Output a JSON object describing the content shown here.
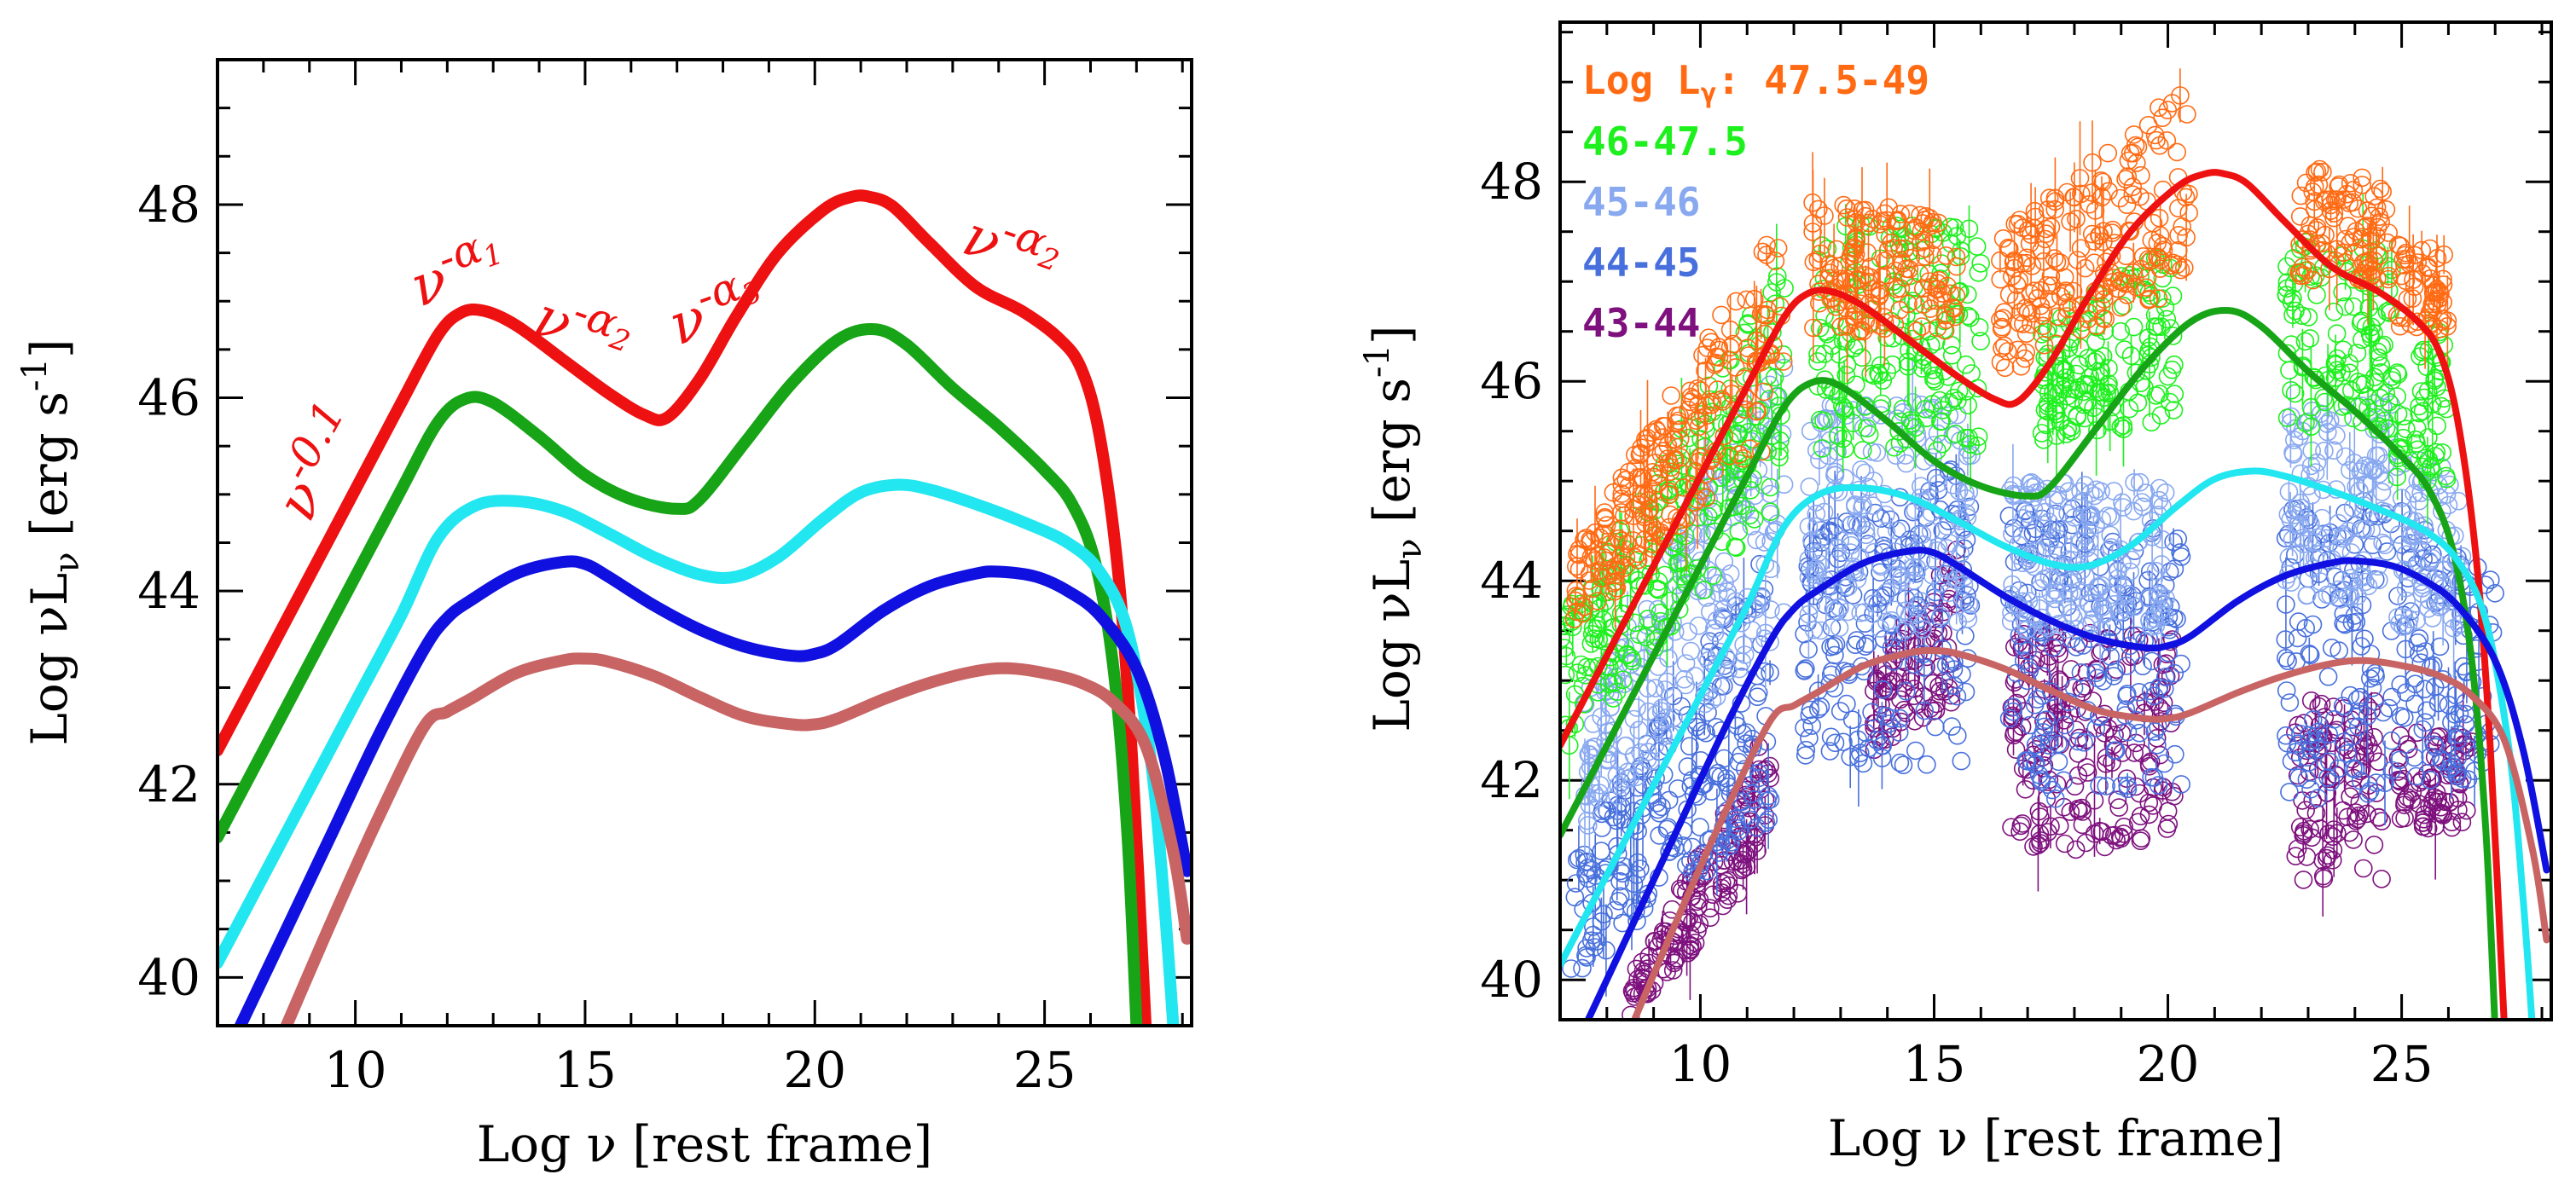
{
  "chart_data": [
    {
      "type": "line",
      "panel": "left",
      "xlabel": "Log ν [rest frame]",
      "ylabel": "Log νL",
      "ylabel_sub": "ν",
      "ylabel_unit": "[erg s",
      "ylabel_unit_sup": "-1",
      "ylabel_unit_close": "]",
      "xlim": [
        7,
        28.2
      ],
      "ylim": [
        39.5,
        49.5
      ],
      "xticks": [
        "10",
        "15",
        "20",
        "25"
      ],
      "yticks": [
        "40",
        "42",
        "44",
        "46",
        "48"
      ],
      "annotations": {
        "ann_nu01": {
          "base": "ν",
          "sup": "-0.1",
          "x": 9.0,
          "y": 43.0
        },
        "ann_alpha1": {
          "base": "ν",
          "sup": "-α",
          "sub": "1",
          "x": 12.1,
          "y": 46.95
        },
        "ann_alpha2a": {
          "base": "ν",
          "sup": "-α",
          "sub": "2",
          "x": 14.4,
          "y": 46.4
        },
        "ann_alpha3": {
          "base": "ν",
          "sup": "-α",
          "sub": "3",
          "x": 18.1,
          "y": 46.4
        },
        "ann_alpha2b": {
          "base": "ν",
          "sup": "-α",
          "sub": "2",
          "x": 24.8,
          "y": 47.3
        }
      },
      "series": [
        {
          "name": "Log Lγ 47.5–49",
          "color": "#ee1111",
          "x": [
            7,
            8,
            9,
            10,
            11,
            11.8,
            12.3,
            12.8,
            13.5,
            14.5,
            15.5,
            16.3,
            16.8,
            17.5,
            18.3,
            19.2,
            20.2,
            20.8,
            21.2,
            21.7,
            22.5,
            23.5,
            24.5,
            25.3,
            25.8,
            26.2,
            26.6,
            26.9,
            27.2
          ],
          "y": [
            42.35,
            43.25,
            44.15,
            45.05,
            45.95,
            46.65,
            46.88,
            46.9,
            46.75,
            46.4,
            46.05,
            45.82,
            45.8,
            46.2,
            46.85,
            47.5,
            47.95,
            48.08,
            48.08,
            47.98,
            47.6,
            47.15,
            46.9,
            46.62,
            46.3,
            45.6,
            44.2,
            42.3,
            39.5
          ]
        },
        {
          "name": "Log Lγ 46–47.5",
          "color": "#17a417",
          "x": [
            7,
            8,
            9,
            10,
            11,
            11.8,
            12.4,
            13,
            14,
            15,
            16,
            17,
            17.5,
            18.5,
            19.5,
            20.5,
            21.3,
            22,
            23,
            24,
            25,
            25.6,
            26.1,
            26.5,
            26.8,
            27.0
          ],
          "y": [
            41.45,
            42.35,
            43.25,
            44.15,
            45.05,
            45.75,
            45.99,
            45.95,
            45.6,
            45.2,
            44.95,
            44.85,
            44.95,
            45.55,
            46.15,
            46.6,
            46.71,
            46.55,
            46.1,
            45.7,
            45.25,
            44.9,
            44.3,
            43.2,
            41.5,
            39.5
          ]
        },
        {
          "name": "Log Lγ 45–46",
          "color": "#22e6f0",
          "x": [
            7,
            8,
            9,
            10,
            11,
            11.8,
            12.6,
            13.5,
            14.5,
            15.5,
            16.5,
            17.5,
            18.3,
            19.2,
            20.2,
            21,
            21.8,
            22.5,
            23.5,
            24.5,
            25.5,
            26.2,
            26.8,
            27.3,
            27.6,
            27.8
          ],
          "y": [
            40.15,
            41.05,
            41.95,
            42.85,
            43.75,
            44.55,
            44.88,
            44.93,
            44.83,
            44.6,
            44.35,
            44.17,
            44.15,
            44.35,
            44.75,
            45.02,
            45.1,
            45.05,
            44.9,
            44.72,
            44.5,
            44.2,
            43.6,
            42.3,
            40.8,
            39.5
          ]
        },
        {
          "name": "Log Lγ 44–45",
          "color": "#1010e0",
          "x": [
            7.5,
            8.5,
            9.5,
            10.5,
            11.5,
            12,
            12.5,
            13.5,
            14.5,
            15,
            15.5,
            16.5,
            17.5,
            18.5,
            19.5,
            20,
            20.5,
            21.5,
            22.5,
            23.5,
            24,
            24.8,
            25.5,
            26.2,
            27,
            27.6,
            28.1
          ],
          "y": [
            39.5,
            40.5,
            41.5,
            42.5,
            43.4,
            43.72,
            43.9,
            44.18,
            44.3,
            44.28,
            44.15,
            43.85,
            43.6,
            43.42,
            43.33,
            43.35,
            43.45,
            43.8,
            44.05,
            44.18,
            44.2,
            44.15,
            44.0,
            43.75,
            43.2,
            42.3,
            41.1
          ]
        },
        {
          "name": "Log Lγ 43–44",
          "color": "#c86464",
          "x": [
            8.5,
            9.5,
            10.5,
            11.5,
            12,
            12.5,
            13.5,
            14.5,
            15,
            15.5,
            16.5,
            17.5,
            18.5,
            19.5,
            20,
            20.5,
            21.5,
            22.5,
            23.5,
            24.2,
            25,
            25.8,
            26.5,
            27.2,
            27.8,
            28.1
          ],
          "y": [
            39.5,
            40.6,
            41.65,
            42.6,
            42.75,
            42.88,
            43.15,
            43.28,
            43.3,
            43.27,
            43.12,
            42.9,
            42.7,
            42.62,
            42.62,
            42.68,
            42.88,
            43.05,
            43.17,
            43.2,
            43.15,
            43.05,
            42.85,
            42.4,
            41.3,
            40.4
          ]
        }
      ]
    },
    {
      "type": "scatter",
      "panel": "right",
      "xlabel": "Log ν [rest frame]",
      "ylabel": "Log νL",
      "ylabel_sub": "ν",
      "ylabel_unit": "[erg s",
      "ylabel_unit_sup": "-1",
      "ylabel_unit_close": "]",
      "xlim": [
        7,
        28.2
      ],
      "ylim": [
        39.6,
        49.6
      ],
      "xticks": [
        "10",
        "15",
        "20",
        "25"
      ],
      "yticks": [
        "40",
        "42",
        "44",
        "46",
        "48"
      ],
      "legend_title": "Log L",
      "legend_title_sub": "γ",
      "legend_title_suffix": ":",
      "legend": [
        {
          "label": "47.5-49",
          "color": "#ff6a13"
        },
        {
          "label": "46-47.5",
          "color": "#1ef01e"
        },
        {
          "label": "45-46",
          "color": "#88a8f0"
        },
        {
          "label": "44-45",
          "color": "#4870dd"
        },
        {
          "label": "43-44",
          "color": "#7e117e"
        }
      ],
      "point_bands": [
        {
          "label": "43-44",
          "color": "#7e117e",
          "segments": [
            [
              8.5,
              11.5,
              39.6,
              41.2,
              40.0,
              42.6
            ],
            [
              13.7,
              15.5,
              42.3,
              42.8,
              43.0,
              44.5
            ],
            [
              16.6,
              20.2,
              41.3,
              41.3,
              43.5,
              43.5
            ],
            [
              22.7,
              24.6,
              41.0,
              41.0,
              42.8,
              42.8
            ],
            [
              24.9,
              26.5,
              41.5,
              41.5,
              42.5,
              42.5
            ]
          ]
        },
        {
          "label": "44-45",
          "color": "#4870dd",
          "segments": [
            [
              7.2,
              11.5,
              40.0,
              41.6,
              41.2,
              44.4
            ],
            [
              12.2,
              15.8,
              42.0,
              42.2,
              44.5,
              45.2
            ],
            [
              16.6,
              20.3,
              41.8,
              41.8,
              44.8,
              44.6
            ],
            [
              22.5,
              24.8,
              41.8,
              41.8,
              44.8,
              44.8
            ],
            [
              24.9,
              27.0,
              42.0,
              42.0,
              44.8,
              44.0
            ]
          ]
        },
        {
          "label": "45-46",
          "color": "#88a8f0",
          "segments": [
            [
              7.5,
              11.8,
              41.5,
              43.5,
              42.8,
              46.5
            ],
            [
              12.3,
              15.8,
              43.5,
              43.5,
              45.8,
              45.8
            ],
            [
              16.6,
              20.0,
              43.5,
              43.5,
              45.0,
              45.0
            ],
            [
              22.5,
              24.8,
              43.8,
              43.8,
              45.8,
              45.8
            ],
            [
              24.9,
              26.3,
              43.5,
              43.5,
              45.5,
              45.0
            ]
          ]
        },
        {
          "label": "46-47.5",
          "color": "#1ef01e",
          "segments": [
            [
              7.0,
              11.8,
              42.2,
              44.8,
              43.6,
              47.2
            ],
            [
              12.5,
              16.0,
              45.3,
              45.3,
              47.6,
              47.6
            ],
            [
              17.3,
              20.2,
              45.4,
              45.6,
              46.5,
              47.5
            ],
            [
              22.5,
              24.8,
              45.5,
              45.5,
              47.5,
              47.3
            ],
            [
              24.9,
              26.0,
              45.0,
              45.0,
              46.5,
              46.5
            ]
          ]
        },
        {
          "label": "47.5-49",
          "color": "#ff6a13",
          "segments": [
            [
              7.3,
              11.8,
              43.5,
              45.5,
              44.3,
              47.7
            ],
            [
              12.4,
              15.5,
              46.5,
              46.5,
              47.8,
              47.7
            ],
            [
              16.4,
              20.5,
              46.0,
              47.0,
              47.5,
              49.0
            ],
            [
              22.8,
              24.8,
              47.0,
              47.0,
              48.2,
              48.0
            ],
            [
              24.9,
              26.0,
              46.5,
              46.5,
              47.5,
              47.3
            ]
          ]
        }
      ],
      "series": [
        {
          "name": "Log Lγ 47.5–49",
          "color": "#ee1111",
          "x": [
            7,
            8,
            9,
            10,
            11,
            11.8,
            12.3,
            12.8,
            13.5,
            14.5,
            15.5,
            16.3,
            16.8,
            17.5,
            18.3,
            19.2,
            20.2,
            20.8,
            21.2,
            21.7,
            22.5,
            23.5,
            24.5,
            25.3,
            25.8,
            26.2,
            26.6,
            26.9,
            27.2
          ],
          "y": [
            42.35,
            43.25,
            44.15,
            45.05,
            45.95,
            46.65,
            46.88,
            46.9,
            46.75,
            46.4,
            46.05,
            45.82,
            45.8,
            46.2,
            46.85,
            47.5,
            47.95,
            48.08,
            48.08,
            47.98,
            47.6,
            47.15,
            46.9,
            46.62,
            46.3,
            45.6,
            44.2,
            42.3,
            39.5
          ]
        },
        {
          "name": "Log Lγ 46–47.5",
          "color": "#17a417",
          "x": [
            7,
            8,
            9,
            10,
            11,
            11.8,
            12.4,
            13,
            14,
            15,
            16,
            17,
            17.5,
            18.5,
            19.5,
            20.5,
            21.3,
            22,
            23,
            24,
            25,
            25.6,
            26.1,
            26.5,
            26.8,
            27.0
          ],
          "y": [
            41.45,
            42.35,
            43.25,
            44.15,
            45.05,
            45.75,
            45.99,
            45.95,
            45.6,
            45.2,
            44.95,
            44.85,
            44.95,
            45.55,
            46.15,
            46.6,
            46.71,
            46.55,
            46.1,
            45.7,
            45.25,
            44.9,
            44.3,
            43.2,
            41.5,
            39.5
          ]
        },
        {
          "name": "Log Lγ 45–46",
          "color": "#22e6f0",
          "x": [
            7,
            8,
            9,
            10,
            11,
            11.8,
            12.6,
            13.5,
            14.5,
            15.5,
            16.5,
            17.5,
            18.3,
            19.2,
            20.2,
            21,
            21.8,
            22.5,
            23.5,
            24.5,
            25.5,
            26.2,
            26.8,
            27.3,
            27.6,
            27.8
          ],
          "y": [
            40.15,
            41.05,
            41.95,
            42.85,
            43.75,
            44.55,
            44.88,
            44.93,
            44.83,
            44.6,
            44.35,
            44.17,
            44.15,
            44.35,
            44.75,
            45.02,
            45.1,
            45.05,
            44.9,
            44.72,
            44.5,
            44.2,
            43.6,
            42.3,
            40.8,
            39.5
          ]
        },
        {
          "name": "Log Lγ 44–45",
          "color": "#1010e0",
          "x": [
            7.5,
            8.5,
            9.5,
            10.5,
            11.5,
            12,
            12.5,
            13.5,
            14.5,
            15,
            15.5,
            16.5,
            17.5,
            18.5,
            19.5,
            20,
            20.5,
            21.5,
            22.5,
            23.5,
            24,
            24.8,
            25.5,
            26.2,
            27,
            27.6,
            28.1
          ],
          "y": [
            39.5,
            40.5,
            41.5,
            42.5,
            43.4,
            43.72,
            43.9,
            44.18,
            44.3,
            44.28,
            44.15,
            43.85,
            43.6,
            43.42,
            43.33,
            43.35,
            43.45,
            43.8,
            44.05,
            44.18,
            44.2,
            44.15,
            44.0,
            43.75,
            43.2,
            42.3,
            41.1
          ]
        },
        {
          "name": "Log Lγ 43–44",
          "color": "#c86464",
          "x": [
            8.5,
            9.5,
            10.5,
            11.5,
            12,
            12.5,
            13.5,
            14.5,
            15,
            15.5,
            16.5,
            17.5,
            18.5,
            19.5,
            20,
            20.5,
            21.5,
            22.5,
            23.5,
            24.2,
            25,
            25.8,
            26.5,
            27.2,
            27.8,
            28.1
          ],
          "y": [
            39.5,
            40.6,
            41.65,
            42.6,
            42.75,
            42.88,
            43.15,
            43.28,
            43.3,
            43.27,
            43.12,
            42.9,
            42.7,
            42.62,
            42.62,
            42.68,
            42.88,
            43.05,
            43.17,
            43.2,
            43.15,
            43.05,
            42.85,
            42.4,
            41.3,
            40.4
          ]
        }
      ]
    }
  ]
}
